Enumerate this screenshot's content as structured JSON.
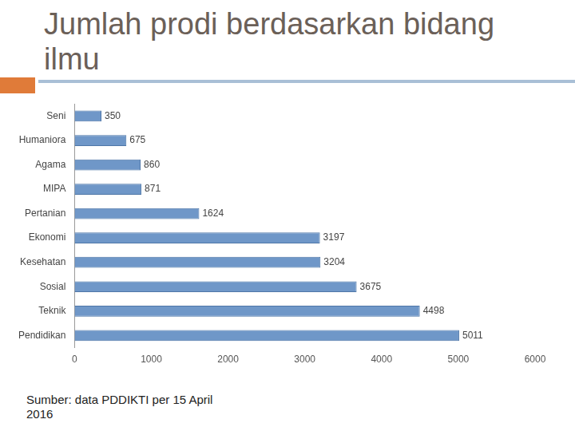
{
  "chart_data": {
    "type": "bar",
    "orientation": "horizontal",
    "title": "Jumlah prodi berdasarkan bidang ilmu",
    "annotations": [
      "Sumber: data PDDIKTI per 15 April 2016"
    ],
    "categories": [
      "Seni",
      "Humaniora",
      "Agama",
      "MIPA",
      "Pertanian",
      "Ekonomi",
      "Kesehatan",
      "Sosial",
      "Teknik",
      "Pendidikan"
    ],
    "values": [
      350,
      675,
      860,
      871,
      1624,
      3197,
      3204,
      3675,
      4498,
      5011
    ],
    "color": "#6f97c8",
    "xlim": [
      0,
      6000
    ],
    "xticks": [
      0,
      1000,
      2000,
      3000,
      4000,
      5000,
      6000
    ],
    "grid": false,
    "data_labels": true
  }
}
